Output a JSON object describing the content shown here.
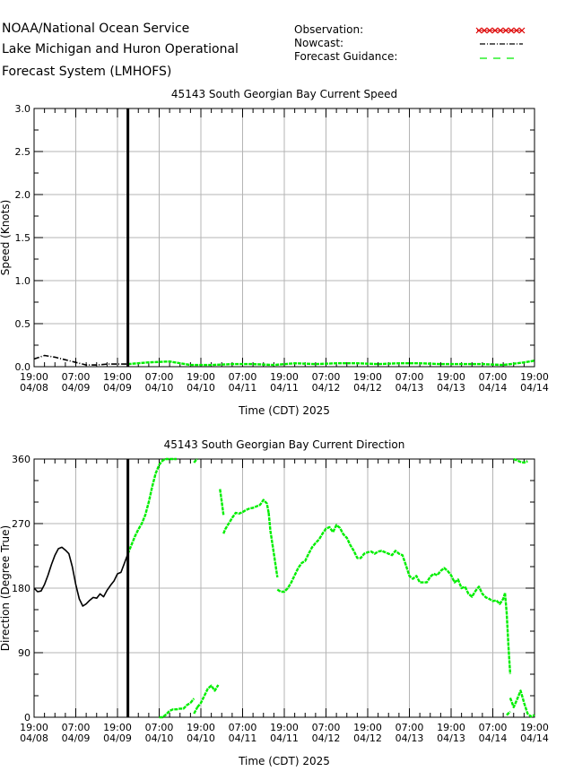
{
  "header": {
    "line1": "NOAA/National Ocean Service",
    "line2": "Lake Michigan and Huron Operational",
    "line3": "Forecast System (LMHOFS)"
  },
  "legend": {
    "observation": "Observation:",
    "nowcast": "Nowcast:",
    "forecast": "Forecast Guidance:",
    "colors": {
      "observation": "#dd0000",
      "nowcast": "#000000",
      "forecast": "#00ee00"
    }
  },
  "chart_data": [
    {
      "type": "line",
      "title": "45143   South Georgian Bay Current Speed",
      "xlabel": "Time (CDT) 2025",
      "ylabel": "Speed (Knots)",
      "x_unit": "hours since 04/08 19:00",
      "xlim": [
        0,
        144
      ],
      "ylim": [
        0,
        3.0
      ],
      "yticks": [
        0.0,
        0.5,
        1.0,
        1.5,
        2.0,
        2.5,
        3.0
      ],
      "ytick_labels": [
        "0.0",
        "0.5",
        "1.0",
        "1.5",
        "2.0",
        "2.5",
        "3.0"
      ],
      "xtick_labels": [
        [
          "19:00",
          "04/08"
        ],
        [
          "07:00",
          "04/09"
        ],
        [
          "19:00",
          "04/09"
        ],
        [
          "07:00",
          "04/10"
        ],
        [
          "19:00",
          "04/10"
        ],
        [
          "07:00",
          "04/11"
        ],
        [
          "19:00",
          "04/11"
        ],
        [
          "07:00",
          "04/12"
        ],
        [
          "19:00",
          "04/12"
        ],
        [
          "07:00",
          "04/13"
        ],
        [
          "19:00",
          "04/13"
        ],
        [
          "07:00",
          "04/14"
        ],
        [
          "19:00",
          "04/14"
        ]
      ],
      "nowcast_cutoff": 27,
      "grid": true,
      "series": [
        {
          "name": "Nowcast",
          "x": [
            0,
            3,
            6,
            9,
            12,
            15,
            18,
            21,
            24,
            27
          ],
          "y": [
            0.09,
            0.13,
            0.11,
            0.08,
            0.05,
            0.02,
            0.02,
            0.03,
            0.03,
            0.03
          ]
        },
        {
          "name": "Forecast Guidance",
          "x": [
            27,
            33,
            39,
            45,
            51,
            57,
            63,
            69,
            75,
            81,
            87,
            93,
            99,
            105,
            111,
            117,
            123,
            129,
            135,
            141,
            144
          ],
          "y": [
            0.03,
            0.05,
            0.06,
            0.02,
            0.02,
            0.03,
            0.03,
            0.02,
            0.04,
            0.03,
            0.04,
            0.04,
            0.03,
            0.04,
            0.04,
            0.03,
            0.03,
            0.03,
            0.02,
            0.05,
            0.07
          ]
        }
      ]
    },
    {
      "type": "line",
      "title": "45143   South Georgian Bay Current Direction",
      "xlabel": "Time (CDT) 2025",
      "ylabel": "Direction (Degree True)",
      "x_unit": "hours since 04/08 19:00",
      "xlim": [
        0,
        144
      ],
      "ylim": [
        0,
        360
      ],
      "yticks": [
        0,
        90,
        180,
        270,
        360
      ],
      "ytick_labels": [
        "0",
        "90",
        "180",
        "270",
        "360"
      ],
      "xtick_labels": [
        [
          "19:00",
          "04/08"
        ],
        [
          "07:00",
          "04/09"
        ],
        [
          "19:00",
          "04/09"
        ],
        [
          "07:00",
          "04/10"
        ],
        [
          "19:00",
          "04/10"
        ],
        [
          "07:00",
          "04/11"
        ],
        [
          "19:00",
          "04/11"
        ],
        [
          "07:00",
          "04/12"
        ],
        [
          "19:00",
          "04/12"
        ],
        [
          "07:00",
          "04/13"
        ],
        [
          "19:00",
          "04/13"
        ],
        [
          "07:00",
          "04/14"
        ],
        [
          "19:00",
          "04/14"
        ]
      ],
      "nowcast_cutoff": 27,
      "grid": true,
      "series": [
        {
          "name": "Nowcast",
          "segments": [
            {
              "x": [
                0,
                1,
                2,
                3,
                4,
                5,
                6,
                7,
                8,
                9,
                10,
                11,
                12,
                13,
                14,
                15,
                16,
                17,
                18,
                19,
                20,
                21,
                22,
                23,
                24,
                25,
                26,
                27
              ],
              "y": [
                180,
                175,
                176,
                185,
                198,
                213,
                226,
                235,
                237,
                233,
                228,
                210,
                185,
                165,
                155,
                158,
                163,
                167,
                166,
                172,
                168,
                177,
                184,
                190,
                200,
                202,
                215,
                228
              ]
            }
          ]
        },
        {
          "name": "Forecast Guidance",
          "segments": [
            {
              "x": [
                27,
                28,
                29,
                30,
                31,
                32,
                33,
                34,
                35,
                36,
                37,
                38,
                39,
                40,
                41
              ],
              "y": [
                228,
                240,
                252,
                262,
                270,
                282,
                300,
                322,
                340,
                352,
                358,
                360,
                360,
                360,
                360
              ]
            },
            {
              "x": [
                36,
                37,
                38,
                39,
                40,
                41,
                42,
                43,
                44,
                45
              ],
              "y": [
                0,
                0,
                4,
                9,
                11,
                11,
                12,
                12,
                17,
                20
              ]
            },
            {
              "x": [
                45,
                45.5,
                46
              ],
              "y": [
                20,
                23,
                26
              ]
            },
            {
              "x": [
                46,
                47
              ],
              "y": [
                5,
                14
              ]
            },
            {
              "x": [
                47,
                48,
                49,
                50,
                51,
                52,
                53
              ],
              "y": [
                14,
                20,
                30,
                40,
                44,
                37,
                45
              ]
            },
            {
              "x": [
                46,
                46.5,
                47
              ],
              "y": [
                355,
                358,
                360
              ]
            },
            {
              "x": [
                53.5,
                54,
                54.5
              ],
              "y": [
                318,
                300,
                282
              ]
            },
            {
              "x": [
                54.5,
                55,
                56,
                57,
                58,
                59,
                60,
                61,
                62,
                63,
                64,
                65,
                66,
                67,
                67.5
              ],
              "y": [
                256,
                262,
                270,
                278,
                285,
                284,
                286,
                289,
                291,
                292,
                294,
                296,
                303,
                298,
                285
              ]
            },
            {
              "x": [
                67.5,
                68,
                69,
                70
              ],
              "y": [
                285,
                260,
                228,
                195
              ]
            },
            {
              "x": [
                70,
                71,
                72,
                73,
                74,
                75,
                76,
                77,
                78,
                79,
                80,
                81,
                82,
                83,
                84,
                85,
                86,
                87,
                88,
                89,
                90,
                91,
                92,
                93,
                94,
                95,
                96,
                97,
                98,
                99,
                100,
                101,
                102,
                103,
                104,
                105,
                106,
                107,
                108,
                109,
                110,
                111,
                112,
                113,
                114,
                115,
                116,
                117,
                118,
                119,
                120,
                121,
                122,
                123,
                124,
                125,
                126,
                127,
                128,
                129,
                130,
                131,
                132,
                133,
                134,
                135,
                135.5
              ],
              "y": [
                178,
                175,
                175,
                180,
                188,
                198,
                208,
                215,
                218,
                228,
                237,
                243,
                248,
                256,
                263,
                265,
                258,
                268,
                264,
                255,
                250,
                240,
                232,
                222,
                222,
                228,
                230,
                231,
                228,
                231,
                232,
                230,
                228,
                226,
                232,
                228,
                226,
                212,
                197,
                193,
                197,
                188,
                188,
                188,
                196,
                200,
                198,
                204,
                208,
                204,
                198,
                188,
                192,
                180,
                182,
                172,
                168,
                176,
                182,
                172,
                167,
                165,
                162,
                163,
                158,
                165,
                173
              ]
            },
            {
              "x": [
                135.5,
                136,
                136.5,
                137
              ],
              "y": [
                173,
                145,
                100,
                60
              ]
            },
            {
              "x": [
                137,
                138,
                139,
                140,
                141,
                142,
                143,
                144
              ],
              "y": [
                27,
                14,
                25,
                37,
                20,
                5,
                1,
                3
              ]
            },
            {
              "x": [
                136,
                137
              ],
              "y": [
                3,
                8
              ]
            },
            {
              "x": [
                138,
                139,
                140,
                141,
                142
              ],
              "y": [
                360,
                358,
                356,
                355,
                357
              ]
            }
          ]
        }
      ]
    }
  ]
}
